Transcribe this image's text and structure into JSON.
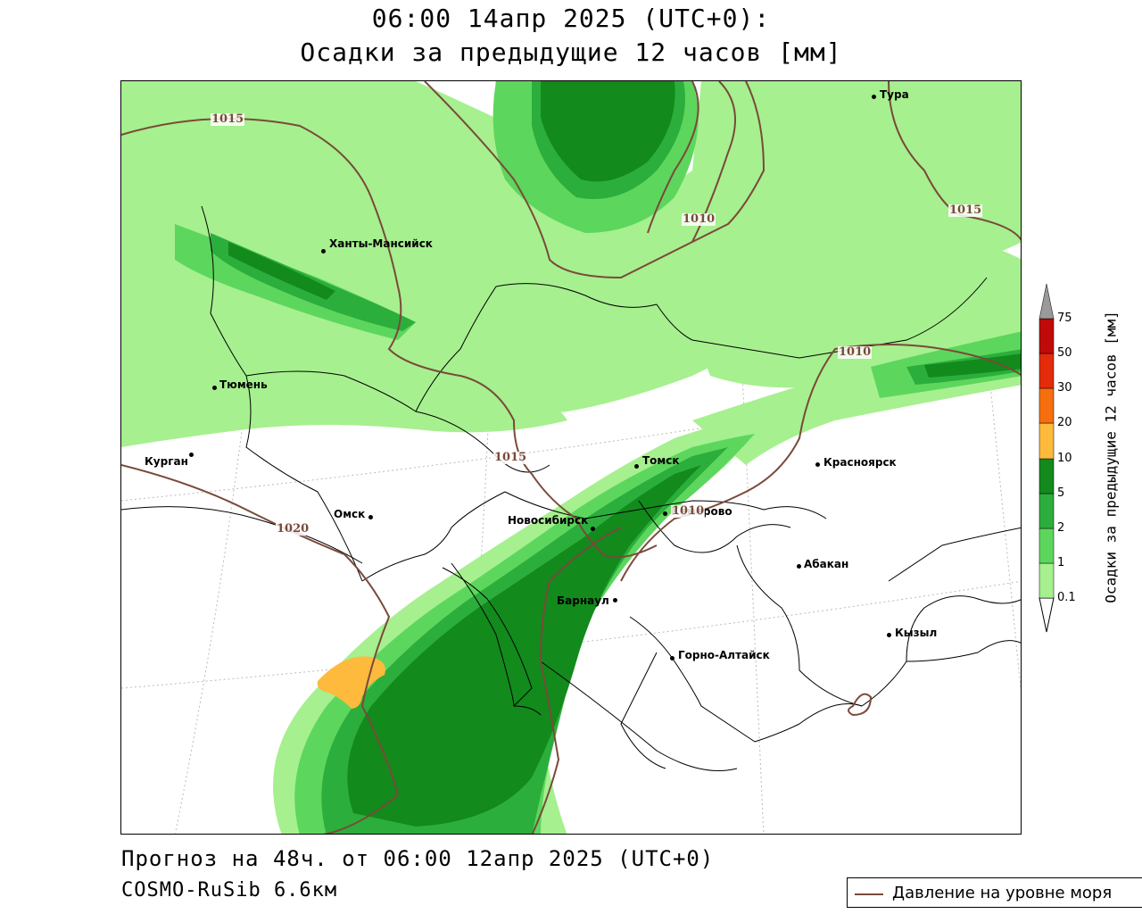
{
  "title": {
    "line1": "06:00 14апр 2025 (UTC+0):",
    "line2": "Осадки за предыдущие 12 часов [мм]"
  },
  "footer": {
    "forecast": "Прогноз на 48ч. от 06:00 12апр 2025 (UTC+0)",
    "model": "COSMO-RuSib 6.6км"
  },
  "legend": {
    "pressure_label": "Давление на уровне моря"
  },
  "colorbar": {
    "title": "Осадки за предыдущие 12 часов [мм]",
    "ticks": [
      "0.1",
      "1",
      "2",
      "5",
      "10",
      "20",
      "30",
      "50",
      "75"
    ],
    "colors": [
      "#ffffff",
      "#a6f08f",
      "#5dd65d",
      "#2cae3c",
      "#128a1c",
      "#fdba3c",
      "#f56f0f",
      "#e42b0a",
      "#c00a0a",
      "#8c0404",
      "#9a9a9a"
    ]
  },
  "cities": [
    {
      "name": "Тура"
    },
    {
      "name": "Ханты-Мансийск"
    },
    {
      "name": "Тюмень"
    },
    {
      "name": "Курган"
    },
    {
      "name": "Омск"
    },
    {
      "name": "Томск"
    },
    {
      "name": "Красноярск"
    },
    {
      "name": "Новосибирск"
    },
    {
      "name": "Кемерово"
    },
    {
      "name": "Абакан"
    },
    {
      "name": "Барнаул"
    },
    {
      "name": "Кызыл"
    },
    {
      "name": "Горно-Алтайск"
    }
  ],
  "isobars": [
    "1015",
    "1010",
    "1015",
    "1010",
    "1015",
    "1010",
    "1020"
  ],
  "colors": {
    "isobar": "#7a4a3a",
    "precip_light": "#a6f08f",
    "precip_1": "#5dd65d",
    "precip_2": "#2cae3c",
    "precip_5": "#128a1c",
    "precip_10": "#fdba3c"
  }
}
